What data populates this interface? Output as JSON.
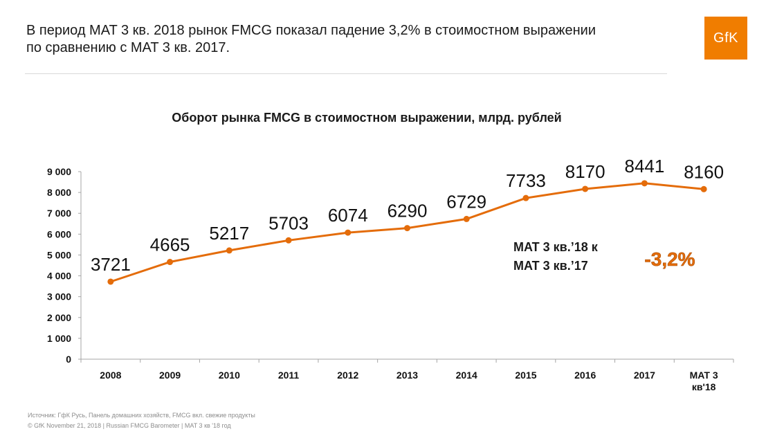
{
  "headline": {
    "line1": "В период MAT 3 кв. 2018 рынок FMCG показал падение 3,2% в стоимостном выражении",
    "line2": "по сравнению с MAT 3 кв. 2017."
  },
  "logo": {
    "text": "GfK",
    "color": "#f07d00"
  },
  "chart_data": {
    "type": "line",
    "title": "Оборот рынка FMCG в стоимостном выражении, млрд. рублей",
    "categories": [
      "2008",
      "2009",
      "2010",
      "2011",
      "2012",
      "2013",
      "2014",
      "2015",
      "2016",
      "2017",
      "MAT 3 кв'18"
    ],
    "category_labels": [
      [
        "2008"
      ],
      [
        "2009"
      ],
      [
        "2010"
      ],
      [
        "2011"
      ],
      [
        "2012"
      ],
      [
        "2013"
      ],
      [
        "2014"
      ],
      [
        "2015"
      ],
      [
        "2016"
      ],
      [
        "2017"
      ],
      [
        "MAT 3",
        "кв'18"
      ]
    ],
    "values": [
      3721,
      4665,
      5217,
      5703,
      6074,
      6290,
      6729,
      7733,
      8170,
      8441,
      8160
    ],
    "value_labels": [
      "3721",
      "4665",
      "5217",
      "5703",
      "6074",
      "6290",
      "6729",
      "7733",
      "8170",
      "8441",
      "8160"
    ],
    "ylim": [
      0,
      9000
    ],
    "yticks": [
      0,
      1000,
      2000,
      3000,
      4000,
      5000,
      6000,
      7000,
      8000,
      9000
    ],
    "ytick_labels": [
      "0",
      "1 000",
      "2 000",
      "3 000",
      "4 000",
      "5 000",
      "6 000",
      "7 000",
      "8 000",
      "9 000"
    ],
    "xlabel": "",
    "ylabel": "",
    "grid": false,
    "series_color": "#e46c0a",
    "annotation": {
      "line1": "MAT 3 кв.’18 к",
      "line2": "MAT 3 кв.’17",
      "change": "-3,2%",
      "change_color": "#e46c0a"
    }
  },
  "footer": {
    "source": "Источник: ГфК Русь, Панель домашних хозяйств, FMCG вкл. свежие продукты",
    "copyright": "© GfK November 21, 2018 | Russian FMCG Barometer | MAT 3 кв '18 год"
  }
}
